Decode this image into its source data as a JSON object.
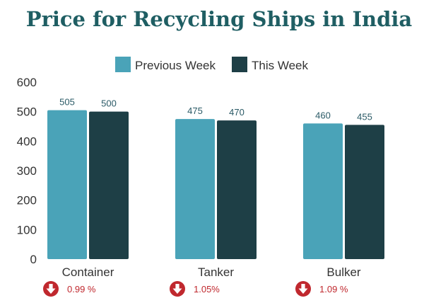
{
  "chart_data": {
    "type": "bar",
    "title": "Price for Recycling Ships in India",
    "xlabel": "",
    "ylabel": "",
    "categories": [
      "Container",
      "Tanker",
      "Bulker"
    ],
    "series": [
      {
        "name": "Previous Week",
        "values": [
          505,
          475,
          460
        ]
      },
      {
        "name": "This Week",
        "values": [
          500,
          470,
          455
        ]
      }
    ],
    "ylim": [
      0,
      600
    ],
    "yticks": [
      0,
      100,
      200,
      300,
      400,
      500,
      600
    ],
    "grid": false,
    "legend_position": "top-center",
    "data_labels": true,
    "changes": [
      {
        "category": "Container",
        "direction": "down",
        "label": "0.99 %"
      },
      {
        "category": "Tanker",
        "direction": "down",
        "label": "1.05%"
      },
      {
        "category": "Bulker",
        "direction": "down",
        "label": "1.09 %"
      }
    ]
  },
  "colors": {
    "title": "#1f5e63",
    "previous_week": "#4aa3b8",
    "this_week": "#1e3f46",
    "axis_text": "#333333",
    "bar_label": "#2a5a66",
    "down_icon": "#c0282e",
    "change_text": "#c0282e"
  },
  "icons": {
    "down": "down-arrow-icon"
  }
}
